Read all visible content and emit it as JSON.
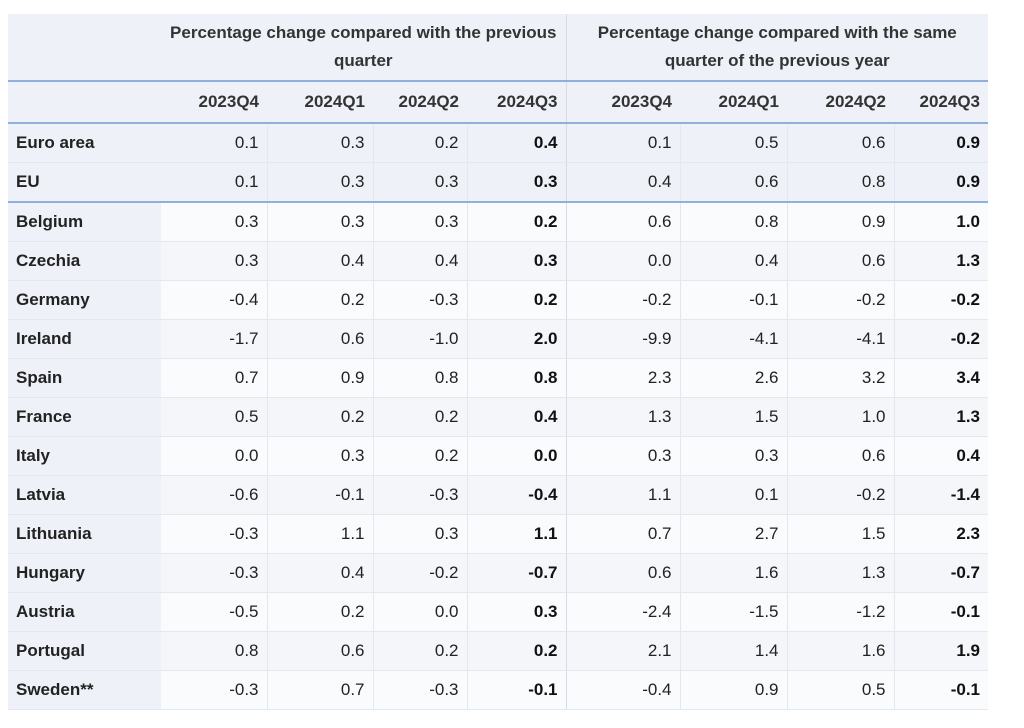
{
  "header": {
    "group1": "Percentage change compared with the previous quarter",
    "group2": "Percentage change compared with the same quarter of the previous year",
    "corner": "",
    "periods": [
      "2023Q4",
      "2024Q1",
      "2024Q2",
      "2024Q3",
      "2023Q4",
      "2024Q1",
      "2024Q2",
      "2024Q3"
    ]
  },
  "rows": [
    {
      "country": "Euro area",
      "values": [
        "0.1",
        "0.3",
        "0.2",
        "0.4",
        "0.1",
        "0.5",
        "0.6",
        "0.9"
      ]
    },
    {
      "country": "EU",
      "values": [
        "0.1",
        "0.3",
        "0.3",
        "0.3",
        "0.4",
        "0.6",
        "0.8",
        "0.9"
      ]
    },
    {
      "country": "Belgium",
      "values": [
        "0.3",
        "0.3",
        "0.3",
        "0.2",
        "0.6",
        "0.8",
        "0.9",
        "1.0"
      ]
    },
    {
      "country": "Czechia",
      "values": [
        "0.3",
        "0.4",
        "0.4",
        "0.3",
        "0.0",
        "0.4",
        "0.6",
        "1.3"
      ]
    },
    {
      "country": "Germany",
      "values": [
        "-0.4",
        "0.2",
        "-0.3",
        "0.2",
        "-0.2",
        "-0.1",
        "-0.2",
        "-0.2"
      ]
    },
    {
      "country": "Ireland",
      "values": [
        "-1.7",
        "0.6",
        "-1.0",
        "2.0",
        "-9.9",
        "-4.1",
        "-4.1",
        "-0.2"
      ]
    },
    {
      "country": "Spain",
      "values": [
        "0.7",
        "0.9",
        "0.8",
        "0.8",
        "2.3",
        "2.6",
        "3.2",
        "3.4"
      ]
    },
    {
      "country": "France",
      "values": [
        "0.5",
        "0.2",
        "0.2",
        "0.4",
        "1.3",
        "1.5",
        "1.0",
        "1.3"
      ]
    },
    {
      "country": "Italy",
      "values": [
        "0.0",
        "0.3",
        "0.2",
        "0.0",
        "0.3",
        "0.3",
        "0.6",
        "0.4"
      ]
    },
    {
      "country": "Latvia",
      "values": [
        "-0.6",
        "-0.1",
        "-0.3",
        "-0.4",
        "1.1",
        "0.1",
        "-0.2",
        "-1.4"
      ]
    },
    {
      "country": "Lithuania",
      "values": [
        "-0.3",
        "1.1",
        "0.3",
        "1.1",
        "0.7",
        "2.7",
        "1.5",
        "2.3"
      ]
    },
    {
      "country": "Hungary",
      "values": [
        "-0.3",
        "0.4",
        "-0.2",
        "-0.7",
        "0.6",
        "1.6",
        "1.3",
        "-0.7"
      ]
    },
    {
      "country": "Austria",
      "values": [
        "-0.5",
        "0.2",
        "0.0",
        "0.3",
        "-2.4",
        "-1.5",
        "-1.2",
        "-0.1"
      ]
    },
    {
      "country": "Portugal",
      "values": [
        "0.8",
        "0.6",
        "0.2",
        "0.2",
        "2.1",
        "1.4",
        "1.6",
        "1.9"
      ]
    },
    {
      "country": "Sweden**",
      "values": [
        "-0.3",
        "0.7",
        "-0.3",
        "-0.1",
        "-0.4",
        "0.9",
        "0.5",
        "-0.1"
      ]
    }
  ]
}
